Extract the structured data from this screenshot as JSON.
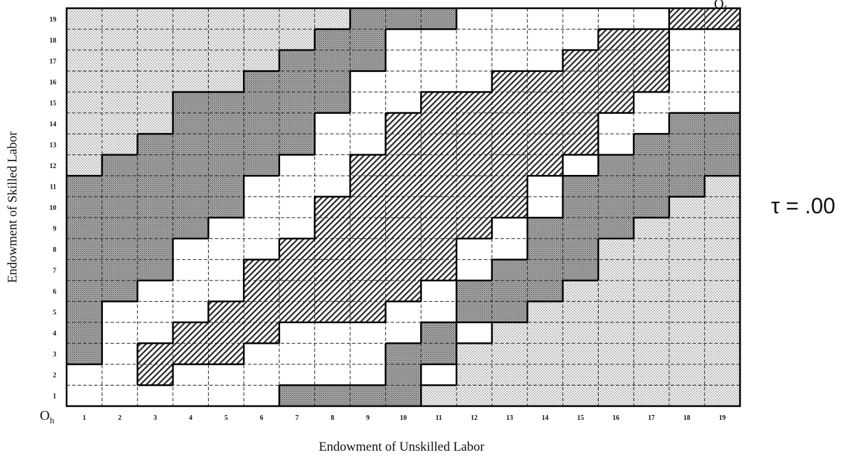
{
  "diagram": {
    "x_axis_label": "Endowment of Unskilled Labor",
    "y_axis_label": "Endowment of Skilled Labor",
    "x_ticks": [
      1,
      2,
      3,
      4,
      5,
      6,
      7,
      8,
      9,
      10,
      11,
      12,
      13,
      14,
      15,
      16,
      17,
      18,
      19
    ],
    "y_ticks": [
      1,
      2,
      3,
      4,
      5,
      6,
      7,
      8,
      9,
      10,
      11,
      12,
      13,
      14,
      15,
      16,
      17,
      18,
      19
    ],
    "origin_home": {
      "text": "O",
      "subscript": "h"
    },
    "origin_foreign": {
      "text": "O",
      "subscript": "f"
    },
    "tau_label": "τ = .00"
  }
}
